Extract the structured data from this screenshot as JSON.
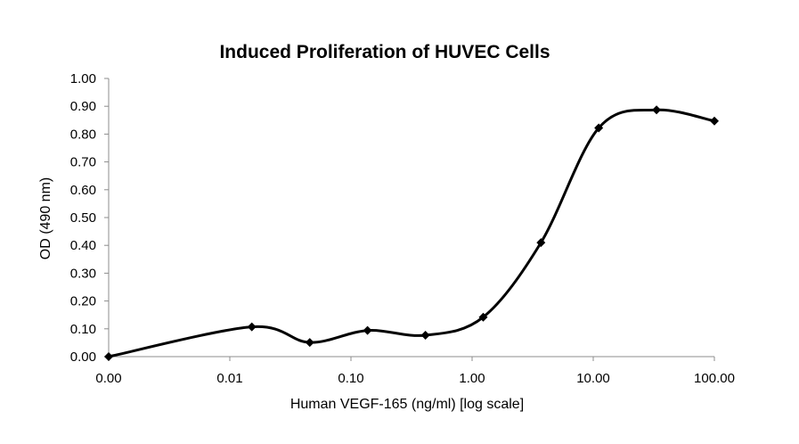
{
  "chart_data": {
    "type": "line",
    "title": "Induced Proliferation of HUVEC Cells",
    "xlabel": "Human VEGF-165 (ng/ml) [log scale]",
    "ylabel": "OD (490 nm)",
    "x_tick_labels": [
      "0.00",
      "0.01",
      "0.10",
      "1.00",
      "10.00",
      "100.00"
    ],
    "y_tick_labels": [
      "0.00",
      "0.10",
      "0.20",
      "0.30",
      "0.40",
      "0.50",
      "0.60",
      "0.70",
      "0.80",
      "0.90",
      "1.00"
    ],
    "ylim": [
      0,
      1.0
    ],
    "x_scale": "log",
    "grid": false,
    "smooth": true,
    "marker": "diamond",
    "colors": {
      "line": "#000000",
      "axis": "#8c8c8c"
    },
    "series": [
      {
        "x": [
          0.001,
          0.0152,
          0.0457,
          0.137,
          0.412,
          1.235,
          3.7,
          11.1,
          33.3,
          100
        ],
        "y": [
          0.0,
          0.107,
          0.051,
          0.094,
          0.077,
          0.142,
          0.41,
          0.822,
          0.887,
          0.847
        ]
      }
    ]
  }
}
